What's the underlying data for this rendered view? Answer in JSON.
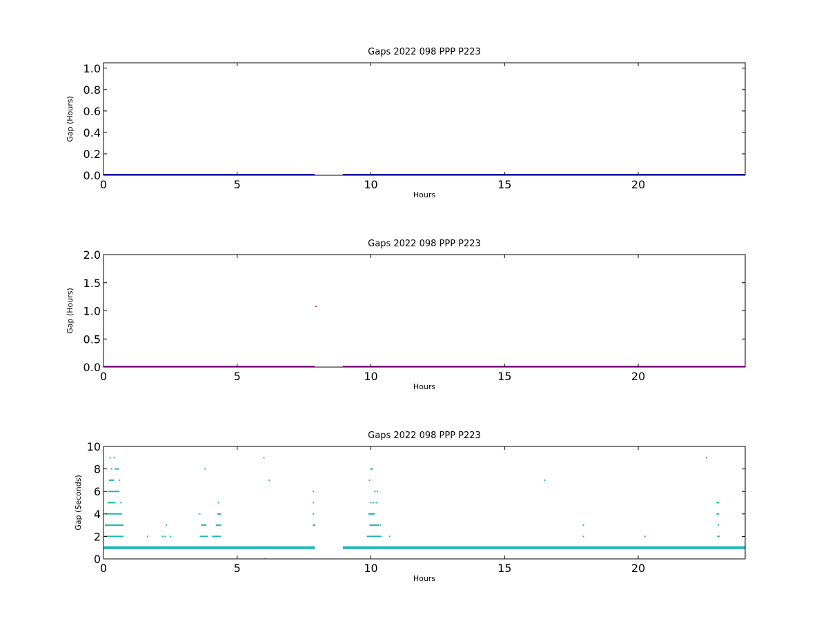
{
  "colors": {
    "panel1": "#1a1ac0",
    "panel2": "#b61ab6",
    "panel3": "#1ab6b6",
    "axes": "#000000",
    "background": "#ffffff"
  },
  "chart_data": [
    {
      "type": "scatter",
      "title": "Gaps 2022 098 PPP  P223",
      "xlabel": "Hours",
      "ylabel": "Gap (Hours)",
      "xlim": [
        0,
        24
      ],
      "ylim": [
        0,
        1.05
      ],
      "xticks": [
        0,
        5,
        10,
        15,
        20
      ],
      "yticks": [
        0.0,
        0.2,
        0.4,
        0.6,
        0.8,
        1.0
      ],
      "ytick_labels": [
        "0.0",
        "0.2",
        "0.4",
        "0.6",
        "0.8",
        "1.0"
      ],
      "grid": false,
      "color": "#1a1ac0",
      "series": [
        {
          "bands": [
            {
              "x_start": 0.0,
              "x_end": 7.9,
              "y": 0.0
            },
            {
              "x_start": 8.95,
              "x_end": 24.0,
              "y": 0.0
            }
          ],
          "points": []
        }
      ]
    },
    {
      "type": "scatter",
      "title": "Gaps 2022 098 PPP  P223",
      "xlabel": "Hours",
      "ylabel": "Gap (Hours)",
      "xlim": [
        0,
        24
      ],
      "ylim": [
        0,
        2.0
      ],
      "xticks": [
        0,
        5,
        10,
        15,
        20
      ],
      "yticks": [
        0.0,
        0.5,
        1.0,
        1.5,
        2.0
      ],
      "ytick_labels": [
        "0.0",
        "0.5",
        "1.0",
        "1.5",
        "2.0"
      ],
      "grid": false,
      "color": "#b61ab6",
      "series": [
        {
          "bands": [
            {
              "x_start": 0.0,
              "x_end": 7.9,
              "y": 0.0
            },
            {
              "x_start": 8.95,
              "x_end": 24.0,
              "y": 0.0
            }
          ],
          "points": [
            {
              "x": 7.95,
              "y": 1.08
            }
          ]
        }
      ]
    },
    {
      "type": "scatter",
      "title": "Gaps 2022 098 PPP  P223",
      "xlabel": "Hours",
      "ylabel": "Gap (Seconds)",
      "xlim": [
        0,
        24
      ],
      "ylim": [
        0,
        10
      ],
      "xticks": [
        0,
        5,
        10,
        15,
        20
      ],
      "yticks": [
        0,
        2,
        4,
        6,
        8,
        10
      ],
      "ytick_labels": [
        "0",
        "2",
        "4",
        "6",
        "8",
        "10"
      ],
      "grid": false,
      "color": "#1ab6b6",
      "series": [
        {
          "bands": [
            {
              "x_start": 0.0,
              "x_end": 7.9,
              "y": 1
            },
            {
              "x_start": 8.95,
              "x_end": 24.0,
              "y": 1
            },
            {
              "x_start": 0.05,
              "x_end": 0.75,
              "y": 2
            },
            {
              "x_start": 0.05,
              "x_end": 0.75,
              "y": 3
            },
            {
              "x_start": 0.1,
              "x_end": 0.7,
              "y": 4
            },
            {
              "x_start": 0.15,
              "x_end": 0.45,
              "y": 5
            },
            {
              "x_start": 0.15,
              "x_end": 0.6,
              "y": 6
            },
            {
              "x_start": 0.2,
              "x_end": 0.4,
              "y": 7
            },
            {
              "x_start": 3.6,
              "x_end": 3.9,
              "y": 2
            },
            {
              "x_start": 3.65,
              "x_end": 3.85,
              "y": 3
            },
            {
              "x_start": 4.05,
              "x_end": 4.4,
              "y": 2
            },
            {
              "x_start": 4.2,
              "x_end": 4.4,
              "y": 3
            },
            {
              "x_start": 4.25,
              "x_end": 4.4,
              "y": 4
            },
            {
              "x_start": 9.85,
              "x_end": 10.4,
              "y": 2
            },
            {
              "x_start": 9.95,
              "x_end": 10.3,
              "y": 3
            },
            {
              "x_start": 9.9,
              "x_end": 10.15,
              "y": 4
            },
            {
              "x_start": 22.95,
              "x_end": 23.05,
              "y": 2
            }
          ],
          "points": [
            {
              "x": 0.25,
              "y": 9
            },
            {
              "x": 0.4,
              "y": 9
            },
            {
              "x": 0.3,
              "y": 8
            },
            {
              "x": 0.45,
              "y": 8
            },
            {
              "x": 0.5,
              "y": 8
            },
            {
              "x": 0.55,
              "y": 8
            },
            {
              "x": 0.6,
              "y": 7
            },
            {
              "x": 0.65,
              "y": 5
            },
            {
              "x": 1.65,
              "y": 2
            },
            {
              "x": 2.2,
              "y": 2
            },
            {
              "x": 2.3,
              "y": 2
            },
            {
              "x": 2.35,
              "y": 3
            },
            {
              "x": 2.5,
              "y": 2
            },
            {
              "x": 3.6,
              "y": 4
            },
            {
              "x": 3.8,
              "y": 8
            },
            {
              "x": 4.3,
              "y": 5
            },
            {
              "x": 6.0,
              "y": 9
            },
            {
              "x": 6.05,
              "y": 0
            },
            {
              "x": 6.2,
              "y": 7
            },
            {
              "x": 7.85,
              "y": 6
            },
            {
              "x": 7.85,
              "y": 5
            },
            {
              "x": 7.85,
              "y": 4
            },
            {
              "x": 7.85,
              "y": 3
            },
            {
              "x": 7.9,
              "y": 3
            },
            {
              "x": 9.95,
              "y": 7
            },
            {
              "x": 10.0,
              "y": 8
            },
            {
              "x": 10.0,
              "y": 5
            },
            {
              "x": 10.05,
              "y": 8
            },
            {
              "x": 10.1,
              "y": 5
            },
            {
              "x": 10.15,
              "y": 6
            },
            {
              "x": 10.2,
              "y": 5
            },
            {
              "x": 10.25,
              "y": 6
            },
            {
              "x": 10.35,
              "y": 3
            },
            {
              "x": 10.7,
              "y": 2
            },
            {
              "x": 16.5,
              "y": 7
            },
            {
              "x": 17.95,
              "y": 3
            },
            {
              "x": 17.95,
              "y": 2
            },
            {
              "x": 20.25,
              "y": 2
            },
            {
              "x": 22.55,
              "y": 9
            },
            {
              "x": 22.95,
              "y": 5
            },
            {
              "x": 23.0,
              "y": 5
            },
            {
              "x": 22.95,
              "y": 4
            },
            {
              "x": 23.0,
              "y": 4
            },
            {
              "x": 23.0,
              "y": 3
            }
          ]
        }
      ]
    }
  ]
}
